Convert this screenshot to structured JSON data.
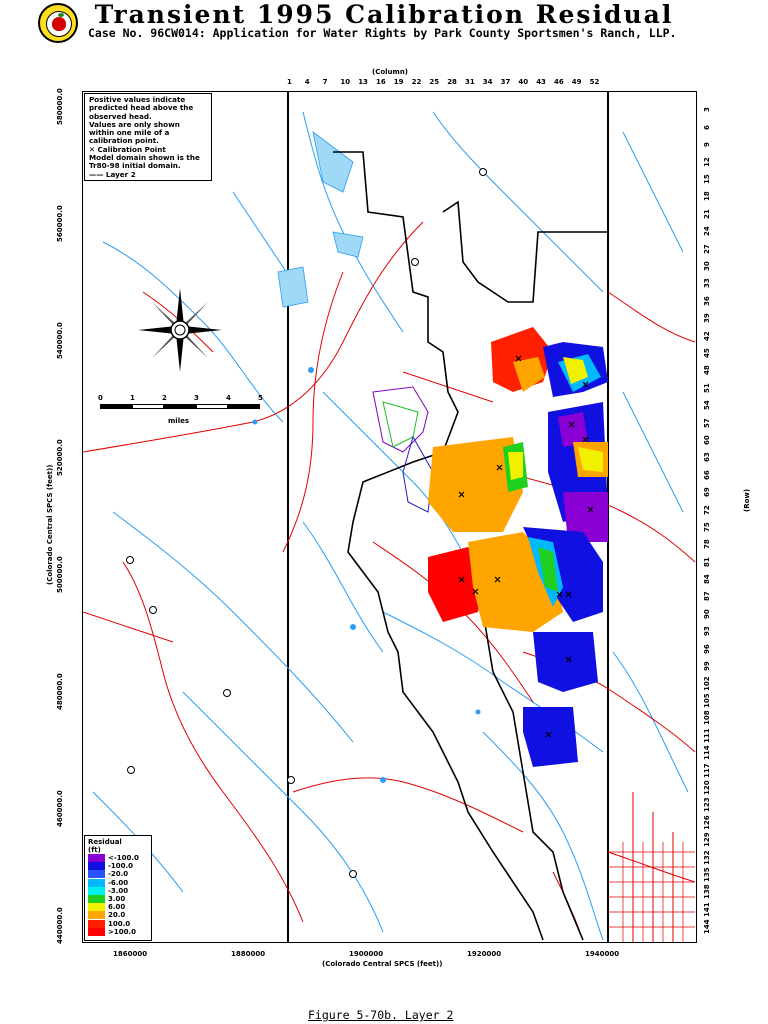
{
  "header": {
    "title": "Transient 1995 Calibration Residual",
    "subtitle": "Case No. 96CW014: Application for Water Rights by Park County Sportsmen's Ranch, LLP."
  },
  "notes": [
    "Positive values indicate",
    "predicted head above the",
    "observed head.",
    "Values are only shown",
    "within one mile of a",
    "calibration point.",
    "✕ Calibration Point",
    "Model domain shown is the",
    "Tr80-98 initial domain.",
    "—— Layer 2"
  ],
  "residual_legend": {
    "title": "Residual",
    "unit": "(ft)",
    "items": [
      {
        "label": "<-100.0",
        "color": "#8a00d4"
      },
      {
        "label": "-100.0",
        "color": "#1010e0"
      },
      {
        "label": "-20.0",
        "color": "#2a52ff"
      },
      {
        "label": "-6.00",
        "color": "#00b8ff"
      },
      {
        "label": "-3.00",
        "color": "#00f0f0"
      },
      {
        "label": "3.00",
        "color": "#20d020"
      },
      {
        "label": "6.00",
        "color": "#f0f000"
      },
      {
        "label": "20.0",
        "color": "#ffa500"
      },
      {
        "label": "100.0",
        "color": "#ff2000"
      },
      {
        "label": ">100.0",
        "color": "#ff0000"
      }
    ]
  },
  "scale": {
    "ticks": [
      "0",
      "1",
      "2",
      "3",
      "4",
      "5"
    ],
    "unit": "miles"
  },
  "columns": {
    "title": "(Column)",
    "labels": [
      "1",
      "4",
      "7",
      "10",
      "13",
      "16",
      "19",
      "22",
      "25",
      "28",
      "31",
      "34",
      "37",
      "40",
      "43",
      "46",
      "49",
      "52"
    ]
  },
  "rows": {
    "title": "(Row)",
    "labels": [
      "3",
      "6",
      "9",
      "12",
      "15",
      "18",
      "21",
      "24",
      "27",
      "30",
      "33",
      "36",
      "39",
      "42",
      "45",
      "48",
      "51",
      "54",
      "57",
      "60",
      "63",
      "66",
      "69",
      "72",
      "75",
      "78",
      "81",
      "84",
      "87",
      "90",
      "93",
      "96",
      "99",
      "102",
      "105",
      "108",
      "111",
      "114",
      "117",
      "120",
      "123",
      "126",
      "129",
      "132",
      "135",
      "138",
      "141",
      "144"
    ]
  },
  "y_axis": {
    "title": "(Colorado Central SPCS (feet))",
    "ticks": [
      "580000.0",
      "560000.0",
      "540000.0",
      "520000.0",
      "500000.0",
      "480000.0",
      "460000.0",
      "440000.0"
    ]
  },
  "x_axis": {
    "title": "(Colorado Central SPCS (feet))",
    "ticks": [
      "1860000",
      "1880000",
      "1900000",
      "1920000",
      "1940000"
    ]
  },
  "caption": "Figure 5-70b.  Layer 2"
}
